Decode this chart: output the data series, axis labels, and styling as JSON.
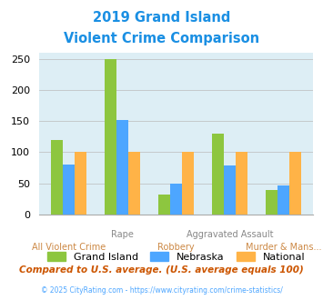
{
  "title_line1": "2019 Grand Island",
  "title_line2": "Violent Crime Comparison",
  "title_color": "#1a8fe3",
  "categories": [
    "All Violent Crime",
    "Rape",
    "Robbery",
    "Aggravated Assault",
    "Murder & Mans..."
  ],
  "top_labels": [
    "",
    "Rape",
    "",
    "Aggravated Assault",
    ""
  ],
  "bottom_labels": [
    "All Violent Crime",
    "",
    "Robbery",
    "",
    "Murder & Mans..."
  ],
  "series": {
    "Grand Island": {
      "values": [
        120,
        250,
        32,
        130,
        40
      ],
      "color": "#8dc63f"
    },
    "Nebraska": {
      "values": [
        80,
        152,
        50,
        78,
        47
      ],
      "color": "#4da6ff"
    },
    "National": {
      "values": [
        100,
        100,
        100,
        100,
        100
      ],
      "color": "#ffb347"
    }
  },
  "ylim": [
    0,
    260
  ],
  "yticks": [
    0,
    50,
    100,
    150,
    200,
    250
  ],
  "plot_bg_color": "#ddeef5",
  "footer_text": "Compared to U.S. average. (U.S. average equals 100)",
  "footer_color": "#cc5500",
  "copyright_text": "© 2025 CityRating.com - https://www.cityrating.com/crime-statistics/",
  "copyright_color": "#4da6ff",
  "bar_width": 0.22,
  "grid_color": "#bbbbbb",
  "top_label_color": "#888888",
  "bottom_label_color": "#cc8844"
}
